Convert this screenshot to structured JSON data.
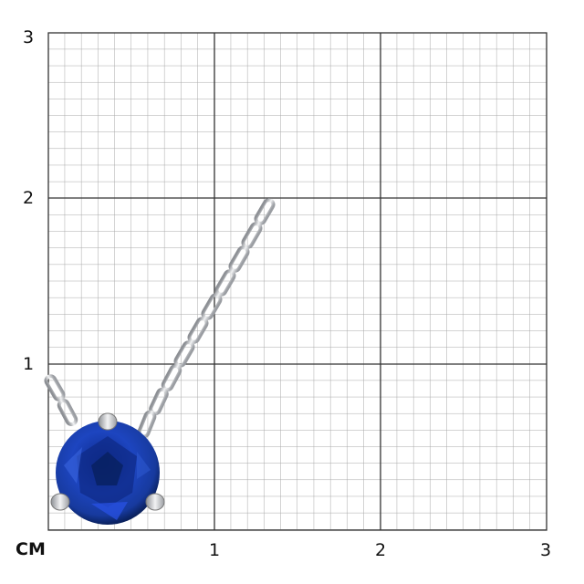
{
  "scale": {
    "unit_label": "CM",
    "x_ticks": [
      "1",
      "2",
      "3"
    ],
    "y_ticks": [
      "3",
      "2",
      "1"
    ]
  },
  "product": {
    "description_icon": "sapphire-solitaire-pendant",
    "gem_color": "#1b3fae",
    "metal_color": "#c9ccd0"
  }
}
